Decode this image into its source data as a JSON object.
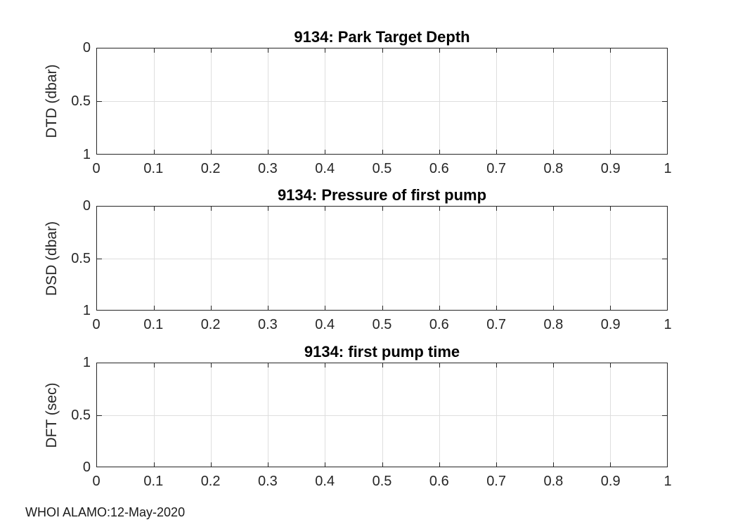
{
  "figure": {
    "background": "#ffffff",
    "footer": "WHOI ALAMO:12-May-2020",
    "colors": {
      "axis_box": "#262626",
      "grid": "#dedede",
      "tick_text": "#262626",
      "title_text": "#000000",
      "plot_background": "#ffffff"
    }
  },
  "chart_data": [
    {
      "type": "line",
      "title": "9134: Park Target Depth",
      "xlabel": "",
      "ylabel": "DTD (dbar)",
      "xlim": [
        0,
        1
      ],
      "ylim": [
        0,
        1
      ],
      "y_axis_reversed": true,
      "grid": true,
      "legend": null,
      "xtick_values": [
        0,
        0.1,
        0.2,
        0.3,
        0.4,
        0.5,
        0.6,
        0.7,
        0.8,
        0.9,
        1
      ],
      "xtick_labels": [
        "0",
        "0.1",
        "0.2",
        "0.3",
        "0.4",
        "0.5",
        "0.6",
        "0.7",
        "0.8",
        "0.9",
        "1"
      ],
      "ytick_values": [
        0,
        0.5,
        1
      ],
      "ytick_labels_top_to_bottom": [
        "0",
        "0.5",
        "1"
      ],
      "series": []
    },
    {
      "type": "line",
      "title": "9134: Pressure of first pump",
      "xlabel": "",
      "ylabel": "DSD (dbar)",
      "xlim": [
        0,
        1
      ],
      "ylim": [
        0,
        1
      ],
      "y_axis_reversed": true,
      "grid": true,
      "legend": null,
      "xtick_values": [
        0,
        0.1,
        0.2,
        0.3,
        0.4,
        0.5,
        0.6,
        0.7,
        0.8,
        0.9,
        1
      ],
      "xtick_labels": [
        "0",
        "0.1",
        "0.2",
        "0.3",
        "0.4",
        "0.5",
        "0.6",
        "0.7",
        "0.8",
        "0.9",
        "1"
      ],
      "ytick_values": [
        0,
        0.5,
        1
      ],
      "ytick_labels_top_to_bottom": [
        "0",
        "0.5",
        "1"
      ],
      "series": []
    },
    {
      "type": "line",
      "title": "9134: first pump time",
      "xlabel": "",
      "ylabel": "DFT (sec)",
      "xlim": [
        0,
        1
      ],
      "ylim": [
        0,
        1
      ],
      "y_axis_reversed": false,
      "grid": true,
      "legend": null,
      "xtick_values": [
        0,
        0.1,
        0.2,
        0.3,
        0.4,
        0.5,
        0.6,
        0.7,
        0.8,
        0.9,
        1
      ],
      "xtick_labels": [
        "0",
        "0.1",
        "0.2",
        "0.3",
        "0.4",
        "0.5",
        "0.6",
        "0.7",
        "0.8",
        "0.9",
        "1"
      ],
      "ytick_values": [
        0,
        0.5,
        1
      ],
      "ytick_labels_top_to_bottom": [
        "1",
        "0.5",
        "0"
      ],
      "series": []
    }
  ]
}
